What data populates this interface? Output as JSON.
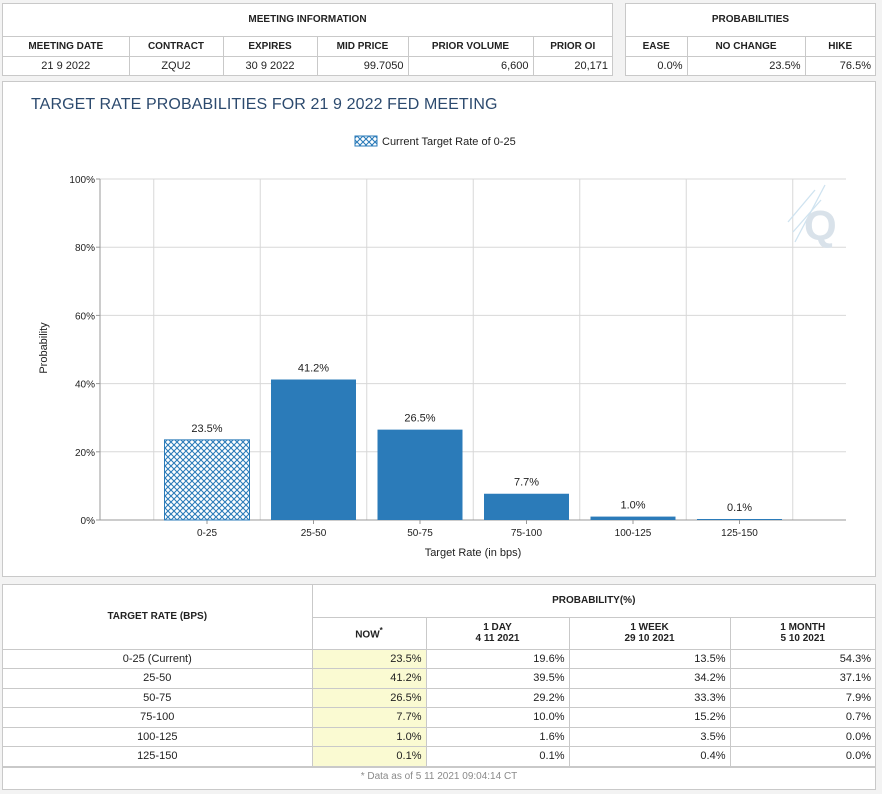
{
  "meeting_info": {
    "title": "MEETING INFORMATION",
    "headers": [
      "MEETING DATE",
      "CONTRACT",
      "EXPIRES",
      "MID PRICE",
      "PRIOR VOLUME",
      "PRIOR OI"
    ],
    "values": [
      "21 9 2022",
      "ZQU2",
      "30 9 2022",
      "99.7050",
      "6,600",
      "20,171"
    ]
  },
  "probabilities": {
    "title": "PROBABILITIES",
    "headers": [
      "EASE",
      "NO CHANGE",
      "HIKE"
    ],
    "values": [
      "0.0%",
      "23.5%",
      "76.5%"
    ]
  },
  "chart_title": "TARGET RATE PROBABILITIES FOR 21 9 2022 FED MEETING",
  "watermark": "Q",
  "chart_data": {
    "type": "bar",
    "title": "TARGET RATE PROBABILITIES FOR 21 9 2022 FED MEETING",
    "xlabel": "Target Rate (in bps)",
    "ylabel": "Probability",
    "categories": [
      "0-25",
      "25-50",
      "50-75",
      "75-100",
      "100-125",
      "125-150"
    ],
    "values": [
      23.5,
      41.2,
      26.5,
      7.7,
      1.0,
      0.1
    ],
    "data_labels": [
      "23.5%",
      "41.2%",
      "26.5%",
      "7.7%",
      "1.0%",
      "0.1%"
    ],
    "ylim": [
      0,
      100
    ],
    "yticks": [
      0,
      20,
      40,
      60,
      80,
      100
    ],
    "ytick_labels": [
      "0%",
      "20%",
      "40%",
      "60%",
      "80%",
      "100%"
    ],
    "highlight_index": 0,
    "legend": {
      "label": "Current Target Rate of 0-25",
      "placement": "top-center"
    },
    "grid": true,
    "colors": {
      "bar": "#2b7bb9",
      "highlight": "#2b7bb9",
      "grid": "#d8d8d8",
      "axis": "#999999"
    }
  },
  "prob_table": {
    "target_rate_header": "TARGET RATE (BPS)",
    "probability_header": "PROBABILITY(%)",
    "cols": [
      {
        "line1": "NOW",
        "line2": "",
        "mark": "*"
      },
      {
        "line1": "1 DAY",
        "line2": "4 11 2021",
        "mark": ""
      },
      {
        "line1": "1 WEEK",
        "line2": "29 10 2021",
        "mark": ""
      },
      {
        "line1": "1 MONTH",
        "line2": "5 10 2021",
        "mark": ""
      }
    ],
    "rows": [
      {
        "rate": "0-25 (Current)",
        "now": "23.5%",
        "day": "19.6%",
        "week": "13.5%",
        "month": "54.3%"
      },
      {
        "rate": "25-50",
        "now": "41.2%",
        "day": "39.5%",
        "week": "34.2%",
        "month": "37.1%"
      },
      {
        "rate": "50-75",
        "now": "26.5%",
        "day": "29.2%",
        "week": "33.3%",
        "month": "7.9%"
      },
      {
        "rate": "75-100",
        "now": "7.7%",
        "day": "10.0%",
        "week": "15.2%",
        "month": "0.7%"
      },
      {
        "rate": "100-125",
        "now": "1.0%",
        "day": "1.6%",
        "week": "3.5%",
        "month": "0.0%"
      },
      {
        "rate": "125-150",
        "now": "0.1%",
        "day": "0.1%",
        "week": "0.4%",
        "month": "0.0%"
      }
    ],
    "footnote": "* Data as of 5 11 2021 09:04:14 CT"
  }
}
